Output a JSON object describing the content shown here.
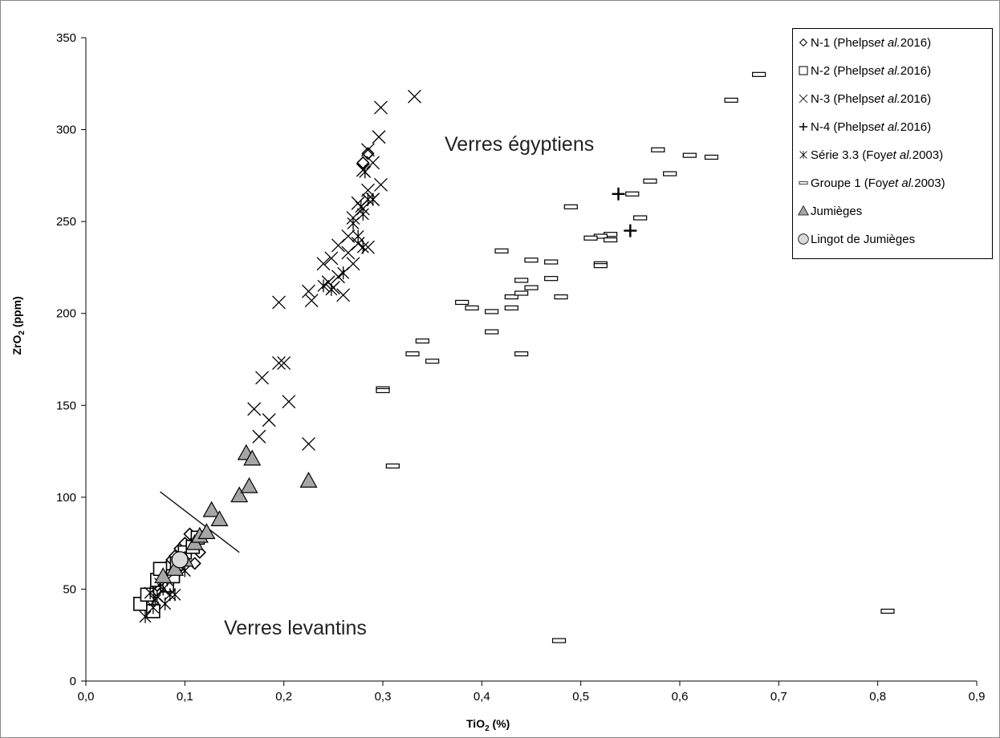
{
  "chart_data": {
    "type": "scatter",
    "title": "",
    "xlabel": {
      "main": "TiO",
      "sub": "2",
      "unit": " (%)"
    },
    "ylabel": {
      "main": "ZrO",
      "sub": "2",
      "unit": " (ppm)"
    },
    "xlim": [
      0,
      0.9
    ],
    "ylim": [
      0,
      350
    ],
    "x_ticks": [
      0,
      0.1,
      0.2,
      0.3,
      0.4,
      0.5,
      0.6,
      0.7,
      0.8,
      0.9
    ],
    "x_tick_labels": [
      "0,0",
      "0,1",
      "0,2",
      "0,3",
      "0,4",
      "0,5",
      "0,6",
      "0,7",
      "0,8",
      "0,9"
    ],
    "y_ticks": [
      0,
      50,
      100,
      150,
      200,
      250,
      300,
      350
    ],
    "y_tick_labels": [
      "0",
      "50",
      "100",
      "150",
      "200",
      "250",
      "300",
      "350"
    ],
    "grid": false,
    "legend_position": "top-right",
    "annotations": [
      {
        "text": "Verres égyptiens"
      },
      {
        "text": "Verres levantins"
      }
    ],
    "divider_line": [
      [
        0.075,
        103
      ],
      [
        0.155,
        70
      ]
    ],
    "series": [
      {
        "name": "N-1",
        "label_parts": [
          "N-1 (Phelps ",
          "et al.",
          " 2016)"
        ],
        "marker": "diamond",
        "points": [
          [
            0.072,
            52
          ],
          [
            0.078,
            58
          ],
          [
            0.083,
            63
          ],
          [
            0.087,
            66
          ],
          [
            0.09,
            68
          ],
          [
            0.095,
            72
          ],
          [
            0.1,
            75
          ],
          [
            0.105,
            80
          ],
          [
            0.11,
            64
          ],
          [
            0.115,
            70
          ],
          [
            0.093,
            61
          ],
          [
            0.085,
            56
          ],
          [
            0.28,
            282
          ],
          [
            0.285,
            287
          ]
        ]
      },
      {
        "name": "N-2",
        "label_parts": [
          "N-2 (Phelps ",
          "et al.",
          " 2016)"
        ],
        "marker": "square",
        "points": [
          [
            0.055,
            42
          ],
          [
            0.062,
            47
          ],
          [
            0.068,
            38
          ],
          [
            0.072,
            55
          ],
          [
            0.075,
            61
          ],
          [
            0.082,
            52
          ],
          [
            0.088,
            57
          ],
          [
            0.092,
            64
          ],
          [
            0.1,
            70
          ],
          [
            0.108,
            73
          ],
          [
            0.113,
            78
          ]
        ]
      },
      {
        "name": "N-3",
        "label_parts": [
          "N-3 (Phelps ",
          "et al.",
          " 2016)"
        ],
        "marker": "x",
        "points": [
          [
            0.332,
            318
          ],
          [
            0.298,
            312
          ],
          [
            0.296,
            296
          ],
          [
            0.298,
            270
          ],
          [
            0.29,
            282
          ],
          [
            0.285,
            289
          ],
          [
            0.28,
            278
          ],
          [
            0.29,
            262
          ],
          [
            0.285,
            267
          ],
          [
            0.28,
            257
          ],
          [
            0.275,
            260
          ],
          [
            0.27,
            252
          ],
          [
            0.265,
            242
          ],
          [
            0.255,
            237
          ],
          [
            0.248,
            230
          ],
          [
            0.24,
            227
          ],
          [
            0.265,
            233
          ],
          [
            0.27,
            227
          ],
          [
            0.275,
            238
          ],
          [
            0.285,
            236
          ],
          [
            0.255,
            220
          ],
          [
            0.25,
            214
          ],
          [
            0.245,
            217
          ],
          [
            0.26,
            210
          ],
          [
            0.228,
            207
          ],
          [
            0.225,
            212
          ],
          [
            0.195,
            206
          ],
          [
            0.2,
            173
          ],
          [
            0.195,
            173
          ],
          [
            0.178,
            165
          ],
          [
            0.205,
            152
          ],
          [
            0.17,
            148
          ],
          [
            0.185,
            142
          ],
          [
            0.175,
            133
          ],
          [
            0.225,
            129
          ]
        ]
      },
      {
        "name": "N-4",
        "label_parts": [
          "N-4 (Phelps ",
          "et al.",
          " 2016)"
        ],
        "marker": "plus",
        "points": [
          [
            0.538,
            265
          ],
          [
            0.55,
            245
          ]
        ]
      },
      {
        "name": "Série 3.3",
        "label_parts": [
          "Série 3.3 (Foy ",
          "et al.",
          " 2003)"
        ],
        "marker": "star",
        "points": [
          [
            0.06,
            35
          ],
          [
            0.068,
            40
          ],
          [
            0.072,
            46
          ],
          [
            0.078,
            50
          ],
          [
            0.08,
            42
          ],
          [
            0.085,
            47
          ],
          [
            0.09,
            47
          ],
          [
            0.075,
            53
          ],
          [
            0.07,
            44
          ],
          [
            0.082,
            55
          ],
          [
            0.1,
            60
          ],
          [
            0.065,
            48
          ],
          [
            0.278,
            258
          ],
          [
            0.28,
            254
          ],
          [
            0.275,
            242
          ],
          [
            0.28,
            236
          ],
          [
            0.285,
            262
          ],
          [
            0.29,
            262
          ],
          [
            0.282,
            277
          ],
          [
            0.27,
            249
          ],
          [
            0.26,
            222
          ],
          [
            0.248,
            213
          ],
          [
            0.24,
            215
          ]
        ]
      },
      {
        "name": "Groupe 1",
        "label_parts": [
          "Groupe 1 (Foy ",
          "et al.",
          " 2003)"
        ],
        "marker": "dash",
        "points": [
          [
            0.68,
            330
          ],
          [
            0.652,
            316
          ],
          [
            0.578,
            289
          ],
          [
            0.61,
            286
          ],
          [
            0.632,
            285
          ],
          [
            0.59,
            276
          ],
          [
            0.57,
            272
          ],
          [
            0.552,
            265
          ],
          [
            0.49,
            258
          ],
          [
            0.56,
            252
          ],
          [
            0.53,
            243
          ],
          [
            0.52,
            242
          ],
          [
            0.51,
            241
          ],
          [
            0.53,
            240
          ],
          [
            0.42,
            234
          ],
          [
            0.45,
            229
          ],
          [
            0.47,
            228
          ],
          [
            0.52,
            227
          ],
          [
            0.52,
            226
          ],
          [
            0.47,
            219
          ],
          [
            0.44,
            218
          ],
          [
            0.45,
            214
          ],
          [
            0.43,
            209
          ],
          [
            0.44,
            211
          ],
          [
            0.48,
            209
          ],
          [
            0.38,
            206
          ],
          [
            0.39,
            203
          ],
          [
            0.43,
            203
          ],
          [
            0.41,
            201
          ],
          [
            0.41,
            190
          ],
          [
            0.34,
            185
          ],
          [
            0.33,
            178
          ],
          [
            0.44,
            178
          ],
          [
            0.35,
            174
          ],
          [
            0.3,
            159
          ],
          [
            0.3,
            158
          ],
          [
            0.31,
            117
          ],
          [
            0.81,
            38
          ],
          [
            0.478,
            22
          ]
        ]
      },
      {
        "name": "Jumièges",
        "label_parts": [
          "Jumièges",
          "",
          ""
        ],
        "marker": "triangle",
        "points": [
          [
            0.078,
            57
          ],
          [
            0.09,
            61
          ],
          [
            0.1,
            66
          ],
          [
            0.11,
            75
          ],
          [
            0.115,
            79
          ],
          [
            0.122,
            81
          ],
          [
            0.127,
            93
          ],
          [
            0.135,
            88
          ],
          [
            0.155,
            101
          ],
          [
            0.165,
            106
          ],
          [
            0.162,
            124
          ],
          [
            0.168,
            121
          ],
          [
            0.225,
            109
          ]
        ]
      },
      {
        "name": "Lingot de Jumièges",
        "label_parts": [
          "Lingot de Jumièges",
          "",
          ""
        ],
        "marker": "circle",
        "points": [
          [
            0.095,
            66
          ]
        ]
      }
    ]
  }
}
